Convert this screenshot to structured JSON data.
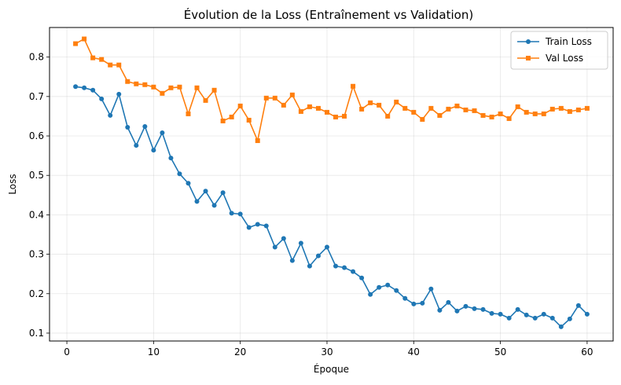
{
  "chart_data": {
    "type": "line",
    "title": "Évolution de la Loss (Entraînement vs Validation)",
    "xlabel": "Époque",
    "ylabel": "Loss",
    "xlim": [
      -2,
      63
    ],
    "ylim": [
      0.08,
      0.875
    ],
    "xticks": [
      0,
      10,
      20,
      30,
      40,
      50,
      60
    ],
    "yticks": [
      0.1,
      0.2,
      0.3,
      0.4,
      0.5,
      0.6,
      0.7,
      0.8
    ],
    "grid": true,
    "legend_position": "top-right",
    "x": [
      1,
      2,
      3,
      4,
      5,
      6,
      7,
      8,
      9,
      10,
      11,
      12,
      13,
      14,
      15,
      16,
      17,
      18,
      19,
      20,
      21,
      22,
      23,
      24,
      25,
      26,
      27,
      28,
      29,
      30,
      31,
      32,
      33,
      34,
      35,
      36,
      37,
      38,
      39,
      40,
      41,
      42,
      43,
      44,
      45,
      46,
      47,
      48,
      49,
      50,
      51,
      52,
      53,
      54,
      55,
      56,
      57,
      58,
      59,
      60
    ],
    "series": [
      {
        "name": "Train Loss",
        "color": "#1f77b4",
        "marker": "circle",
        "values": [
          0.725,
          0.722,
          0.716,
          0.694,
          0.652,
          0.706,
          0.622,
          0.576,
          0.624,
          0.564,
          0.608,
          0.544,
          0.504,
          0.48,
          0.434,
          0.46,
          0.424,
          0.456,
          0.404,
          0.402,
          0.368,
          0.376,
          0.372,
          0.318,
          0.34,
          0.284,
          0.328,
          0.27,
          0.296,
          0.318,
          0.27,
          0.266,
          0.256,
          0.24,
          0.198,
          0.216,
          0.222,
          0.208,
          0.188,
          0.174,
          0.176,
          0.212,
          0.158,
          0.178,
          0.156,
          0.168,
          0.162,
          0.16,
          0.15,
          0.148,
          0.138,
          0.16,
          0.146,
          0.138,
          0.148,
          0.138,
          0.116,
          0.136,
          0.17,
          0.148
        ]
      },
      {
        "name": "Val Loss",
        "color": "#ff7f0e",
        "marker": "square",
        "values": [
          0.834,
          0.846,
          0.798,
          0.794,
          0.78,
          0.78,
          0.738,
          0.732,
          0.73,
          0.724,
          0.708,
          0.722,
          0.724,
          0.656,
          0.722,
          0.69,
          0.716,
          0.638,
          0.648,
          0.676,
          0.64,
          0.588,
          0.696,
          0.696,
          0.678,
          0.704,
          0.662,
          0.674,
          0.67,
          0.66,
          0.648,
          0.65,
          0.726,
          0.668,
          0.684,
          0.678,
          0.65,
          0.686,
          0.67,
          0.66,
          0.642,
          0.67,
          0.652,
          0.668,
          0.676,
          0.666,
          0.664,
          0.652,
          0.648,
          0.656,
          0.644,
          0.674,
          0.66,
          0.656,
          0.656,
          0.668,
          0.67,
          0.662,
          0.666,
          0.67
        ]
      }
    ]
  }
}
